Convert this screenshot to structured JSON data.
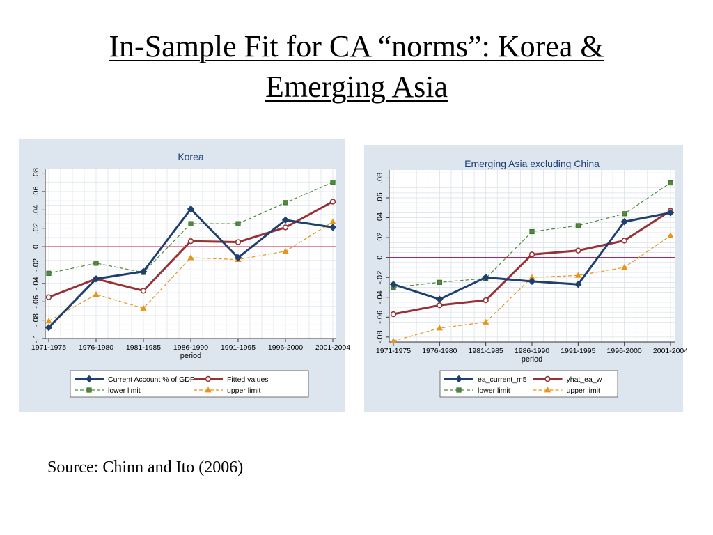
{
  "slide": {
    "title_line1": "In-Sample Fit for CA “norms”: Korea &",
    "title_line2": "Emerging Asia",
    "source": "Source: Chinn and Ito (2006)"
  },
  "colors": {
    "panel_bg": "#dde5ee",
    "plot_bg": "#ffffff",
    "grid": "#d8dfe8",
    "zero_line": "#c0204a",
    "actual": "#1f3f6f",
    "fitted": "#963236",
    "lower": "#4e8a3a",
    "upper": "#e8941a"
  },
  "chart_data": [
    {
      "type": "line",
      "title": "Korea",
      "xlabel": "period",
      "ylabel": "",
      "categories": [
        "1971-1975",
        "1976-1980",
        "1981-1985",
        "1986-1990",
        "1991-1995",
        "1996-2000",
        "2001-2004"
      ],
      "yticks": [
        -0.1,
        -0.08,
        -0.06,
        -0.04,
        -0.02,
        0,
        0.02,
        0.04,
        0.06,
        0.08
      ],
      "ytick_labels": [
        "-.1",
        "-.08",
        "-.06",
        "-.04",
        "-.02",
        "0",
        ".02",
        ".04",
        ".06",
        ".08"
      ],
      "ylim": [
        -0.1,
        0.085
      ],
      "reference_line": 0,
      "grid": true,
      "legend_position": "bottom",
      "series": [
        {
          "name": "Current Account % of GDP",
          "style": "actual",
          "marker": "diamond",
          "values": [
            -0.088,
            -0.035,
            -0.027,
            0.041,
            -0.012,
            0.029,
            0.021
          ]
        },
        {
          "name": "Fitted values",
          "style": "fitted",
          "marker": "circle",
          "values": [
            -0.055,
            -0.035,
            -0.048,
            0.006,
            0.005,
            0.021,
            0.049
          ]
        },
        {
          "name": "lower limit",
          "style": "lower",
          "marker": "square",
          "values": [
            -0.029,
            -0.018,
            -0.028,
            0.025,
            0.025,
            0.048,
            0.07
          ]
        },
        {
          "name": "upper limit",
          "style": "upper",
          "marker": "triangle",
          "values": [
            -0.081,
            -0.052,
            -0.067,
            -0.012,
            -0.014,
            -0.005,
            0.027
          ]
        }
      ]
    },
    {
      "type": "line",
      "title": "Emerging Asia excluding China",
      "xlabel": "period",
      "ylabel": "",
      "categories": [
        "1971-1975",
        "1976-1980",
        "1981-1985",
        "1986-1990",
        "1991-1995",
        "1996-2000",
        "2001-2004"
      ],
      "yticks": [
        -0.08,
        -0.06,
        -0.04,
        -0.02,
        0,
        0.02,
        0.04,
        0.06,
        0.08
      ],
      "ytick_labels": [
        "-.08",
        "-.06",
        "-.04",
        "-.02",
        "0",
        ".02",
        ".04",
        ".06",
        ".08"
      ],
      "ylim": [
        -0.085,
        0.088
      ],
      "reference_line": 0,
      "grid": true,
      "legend_position": "bottom",
      "series": [
        {
          "name": "ea_current_m5",
          "style": "actual",
          "marker": "diamond",
          "values": [
            -0.027,
            -0.042,
            -0.02,
            -0.024,
            -0.027,
            0.036,
            0.045
          ]
        },
        {
          "name": "yhat_ea_w",
          "style": "fitted",
          "marker": "circle",
          "values": [
            -0.057,
            -0.048,
            -0.043,
            0.003,
            0.007,
            0.017,
            0.047
          ]
        },
        {
          "name": "lower limit",
          "style": "lower",
          "marker": "square",
          "values": [
            -0.03,
            -0.025,
            -0.021,
            0.026,
            0.032,
            0.044,
            0.075
          ]
        },
        {
          "name": "upper limit",
          "style": "upper",
          "marker": "triangle",
          "values": [
            -0.084,
            -0.071,
            -0.065,
            -0.02,
            -0.018,
            -0.01,
            0.022
          ]
        }
      ]
    }
  ]
}
